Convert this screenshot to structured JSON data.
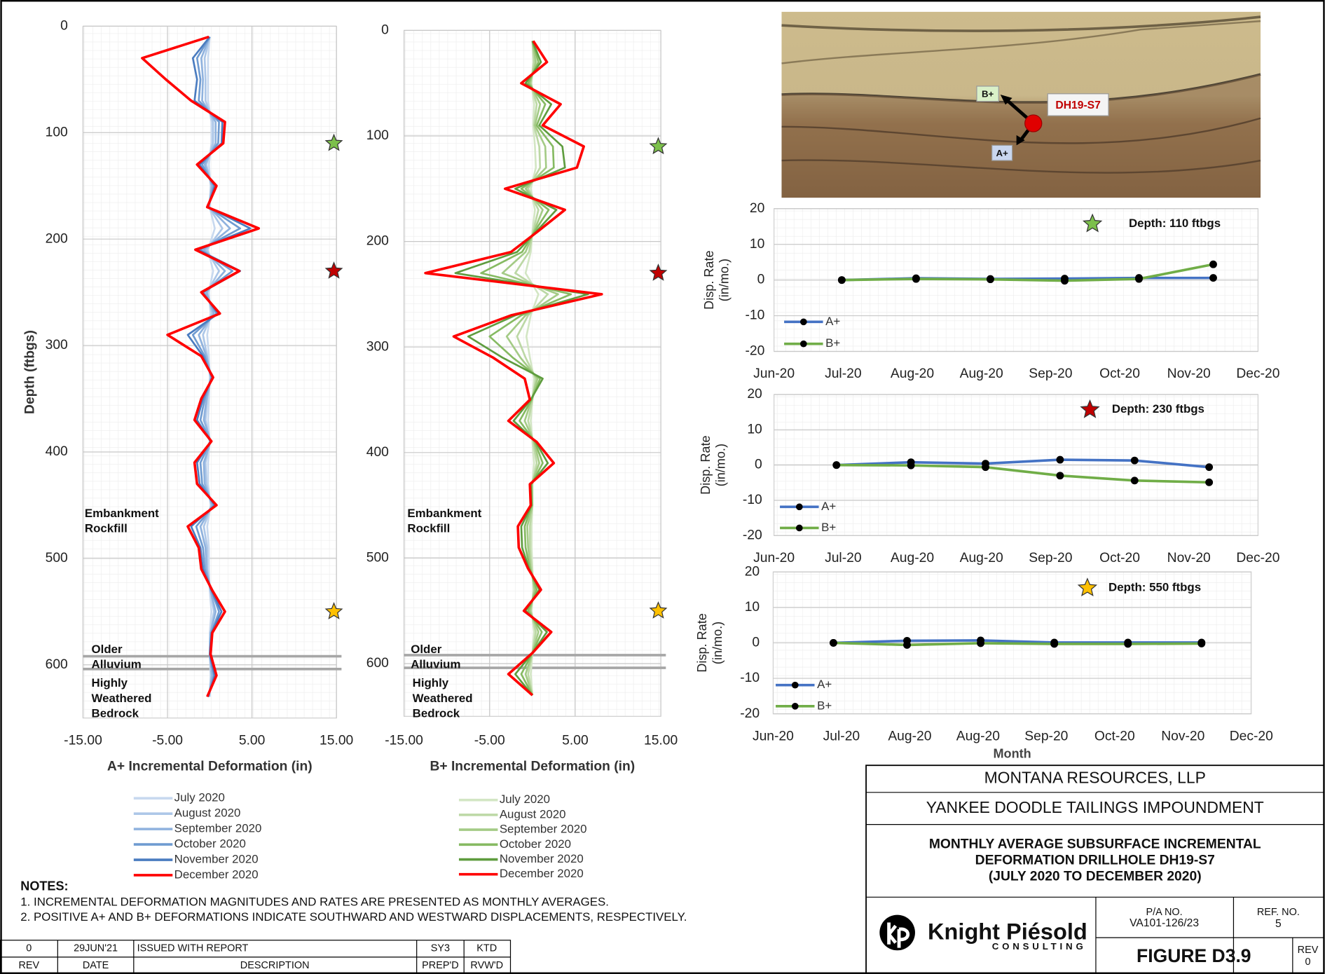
{
  "chart_data": [
    {
      "type": "profile",
      "x_label": "A+ Incremental Deformation (in)",
      "y_label": "Depth (ftbgs)",
      "depths": [
        10,
        30,
        50,
        70,
        90,
        110,
        130,
        150,
        170,
        190,
        210,
        230,
        250,
        270,
        290,
        310,
        330,
        350,
        370,
        390,
        410,
        430,
        450,
        470,
        490,
        510,
        530,
        550,
        570,
        590,
        610,
        630
      ],
      "series": [
        {
          "name": "July 2020",
          "color": "#c8d9ef",
          "values": [
            0,
            -0.2,
            -0.2,
            -0.2,
            0.2,
            0.2,
            -0.1,
            0.1,
            0,
            0.6,
            -0.2,
            0.4,
            -0.1,
            0.1,
            -0.3,
            -0.1,
            0,
            -0.1,
            -0.2,
            0,
            -0.2,
            -0.2,
            0.1,
            -0.3,
            -0.1,
            -0.1,
            0,
            0.2,
            0,
            0,
            0.1,
            0
          ]
        },
        {
          "name": "August  2020",
          "color": "#adc7e8",
          "values": [
            0,
            -0.6,
            -0.5,
            -0.5,
            0.4,
            0.4,
            -0.4,
            0.2,
            -0.1,
            1.5,
            -0.4,
            1.1,
            -0.3,
            0.3,
            -0.8,
            -0.3,
            0.1,
            -0.3,
            -0.5,
            0,
            -0.5,
            -0.4,
            0.2,
            -0.7,
            -0.3,
            -0.3,
            0.1,
            0.5,
            0.1,
            0,
            0.2,
            -0.1
          ]
        },
        {
          "name": "September 2020",
          "color": "#8fb2de",
          "values": [
            0,
            -1,
            -0.8,
            -0.9,
            0.7,
            0.7,
            -0.6,
            0.3,
            -0.1,
            2.4,
            -0.7,
            1.8,
            -0.4,
            0.5,
            -1.3,
            -0.4,
            0.2,
            -0.4,
            -0.7,
            0.1,
            -0.7,
            -0.6,
            0.3,
            -1.1,
            -0.5,
            -0.4,
            0.1,
            0.7,
            0.1,
            0,
            0.3,
            -0.1
          ]
        },
        {
          "name": "October 2020",
          "color": "#6f9bd1",
          "values": [
            0,
            -1.5,
            -1.1,
            -1.3,
            1.1,
            1,
            -0.9,
            0.5,
            -0.2,
            3.6,
            -1.1,
            2.7,
            -0.7,
            0.8,
            -2,
            -0.6,
            0.2,
            -0.6,
            -1.1,
            0.1,
            -1.1,
            -0.9,
            0.5,
            -1.6,
            -0.8,
            -0.6,
            0.2,
            1.1,
            0.2,
            0,
            0.5,
            -0.2
          ]
        },
        {
          "name": "November 2020",
          "color": "#4a7cc0",
          "values": [
            0,
            -2,
            -1.5,
            -1.8,
            1.5,
            1.4,
            -1.2,
            0.6,
            -0.2,
            4.8,
            -1.4,
            3.6,
            -0.9,
            1,
            -2.6,
            -0.8,
            0.3,
            -0.8,
            -1.5,
            0.1,
            -1.5,
            -1.2,
            0.6,
            -2.2,
            -1.1,
            -0.8,
            0.2,
            1.4,
            0.2,
            0,
            0.6,
            -0.2
          ]
        },
        {
          "name": "December 2020",
          "color": "#ff0000",
          "values": [
            -0.1,
            -8,
            -5.2,
            -2.2,
            1.8,
            1.6,
            -1.5,
            0.8,
            -0.3,
            5.8,
            -1.7,
            3.5,
            -1,
            1.2,
            -5,
            -1,
            0.4,
            -1,
            -1.8,
            0.2,
            -1.8,
            -1.5,
            0.8,
            -2.6,
            -1.3,
            -1,
            0.3,
            1.8,
            0.3,
            0.1,
            0.8,
            -0.3
          ]
        }
      ],
      "xlim": [
        -15,
        15
      ],
      "xticks": [
        {
          "value": -15,
          "label": "-15.00"
        },
        {
          "value": -5,
          "label": "-5.00"
        },
        {
          "value": 5,
          "label": "5.00"
        },
        {
          "value": 15,
          "label": "15.00"
        }
      ],
      "ylim": [
        0,
        650
      ],
      "yticks": [
        0,
        100,
        200,
        300,
        400,
        500,
        600
      ],
      "grid": true,
      "boundaries": [
        592,
        604
      ],
      "layer_labels": [
        [
          "Embankment",
          "Rockfill"
        ],
        [
          "Older",
          "Alluvium"
        ],
        [
          "Highly",
          "Weathered",
          "Bedrock"
        ]
      ],
      "markers": [
        {
          "depth": 110,
          "color": "#7cc04b"
        },
        {
          "depth": 230,
          "color": "#c00000"
        },
        {
          "depth": 550,
          "color": "#ffc000"
        }
      ]
    },
    {
      "type": "profile",
      "x_label": "B+ Incremental Deformation (in)",
      "depths": [
        10,
        30,
        50,
        70,
        90,
        110,
        130,
        150,
        170,
        190,
        210,
        230,
        250,
        270,
        290,
        310,
        330,
        350,
        370,
        390,
        410,
        430,
        450,
        470,
        490,
        510,
        530,
        550,
        570,
        590,
        610,
        630
      ],
      "series": [
        {
          "name": "July 2020",
          "color": "#d3e6c4",
          "values": [
            0,
            0.1,
            -0.1,
            0.2,
            0.1,
            0.3,
            0.4,
            -0.2,
            0.3,
            0,
            -0.2,
            -0.8,
            0.7,
            -0.2,
            -0.7,
            -0.3,
            0.2,
            0,
            -0.2,
            0,
            0.2,
            0,
            0,
            -0.1,
            -0.1,
            0,
            0.1,
            -0.1,
            0.2,
            0,
            -0.2,
            0
          ]
        },
        {
          "name": "August 2020",
          "color": "#bcd8a5",
          "values": [
            0,
            0.2,
            -0.2,
            0.5,
            0.2,
            0.8,
            0.9,
            -0.5,
            0.7,
            0.1,
            -0.4,
            -2,
            1.8,
            -0.5,
            -1.8,
            -0.8,
            0.4,
            0,
            -0.5,
            0.1,
            0.5,
            0,
            0,
            -0.3,
            -0.3,
            -0.1,
            0.2,
            -0.2,
            0.4,
            0,
            -0.5,
            0
          ]
        },
        {
          "name": "September 2020",
          "color": "#a4cb86",
          "values": [
            0,
            0.4,
            -0.3,
            0.9,
            0.3,
            1.5,
            1.6,
            -0.8,
            1.2,
            0.2,
            -0.8,
            -3.5,
            3,
            -0.8,
            -3,
            -1.4,
            0.6,
            -0.1,
            -0.9,
            0.2,
            0.8,
            -0.1,
            0,
            -0.6,
            -0.5,
            -0.2,
            0.3,
            -0.3,
            0.7,
            0,
            -0.8,
            0
          ]
        },
        {
          "name": "October 2020",
          "color": "#86ba62",
          "values": [
            0,
            0.7,
            -0.5,
            1.5,
            0.5,
            2.4,
            2.5,
            -1.3,
            1.9,
            0.3,
            -1.2,
            -6,
            4.5,
            -1.3,
            -5,
            -2.3,
            0.9,
            -0.1,
            -1.5,
            0.3,
            1.2,
            -0.1,
            -0.1,
            -0.9,
            -0.8,
            -0.3,
            0.5,
            -0.5,
            1.1,
            0,
            -1.3,
            0
          ]
        },
        {
          "name": "November 2020",
          "color": "#5e9c3e",
          "values": [
            0,
            1,
            -0.8,
            2.2,
            0.8,
            3.5,
            3.8,
            -2,
            2.8,
            0.5,
            -1.8,
            -9,
            6.5,
            -2,
            -7.5,
            -3.5,
            1.2,
            -0.2,
            -2.2,
            0.4,
            1.8,
            -0.2,
            -0.1,
            -1.3,
            -1.2,
            -0.4,
            0.8,
            -0.8,
            1.7,
            0,
            -2,
            0
          ]
        },
        {
          "name": "December 2020",
          "color": "#ff0000",
          "values": [
            0.1,
            1.7,
            -1.3,
            3.3,
            1.2,
            6,
            5.2,
            -3.2,
            3.8,
            0.7,
            -2.5,
            -12.5,
            8.1,
            -2.5,
            -9.2,
            -4.6,
            -0.9,
            -0.3,
            -2.8,
            0.5,
            2.5,
            -0.3,
            -0.2,
            -1.7,
            -1.6,
            -0.5,
            1,
            -1,
            2.2,
            0,
            -2.8,
            0
          ]
        }
      ],
      "xlim": [
        -15,
        15
      ],
      "xticks": [
        {
          "value": -15,
          "label": "-15.00"
        },
        {
          "value": -5,
          "label": "-5.00"
        },
        {
          "value": 5,
          "label": "5.00"
        },
        {
          "value": 15,
          "label": "15.00"
        }
      ],
      "ylim": [
        0,
        650
      ],
      "yticks": [
        0,
        100,
        200,
        300,
        400,
        500,
        600
      ],
      "grid": true,
      "boundaries": [
        592,
        604
      ],
      "layer_labels": [
        [
          "Embankment",
          "Rockfill"
        ],
        [
          "Older",
          "Alluvium"
        ],
        [
          "Highly",
          "Weathered",
          "Bedrock"
        ]
      ],
      "markers": [
        {
          "depth": 110,
          "color": "#7cc04b"
        },
        {
          "depth": 230,
          "color": "#c00000"
        },
        {
          "depth": 550,
          "color": "#ffc000"
        }
      ]
    },
    {
      "type": "line",
      "title": "Depth: 110 ftbgs",
      "marker_color": "#7cc04b",
      "y_label_lines": [
        "Disp. Rate",
        "(in/mo.)"
      ],
      "x_labels": [
        "Jun-20",
        "Jul-20",
        "Aug-20",
        "Aug-20",
        "Sep-20",
        "Oct-20",
        "Nov-20",
        "Dec-20"
      ],
      "ylim": [
        -20,
        20
      ],
      "yticks": [
        -20,
        -10,
        0,
        10,
        20
      ],
      "grid": true,
      "series": [
        {
          "name": "A+",
          "color": "#4472c4",
          "values": [
            0,
            0.5,
            0.3,
            0.4,
            0.6,
            0.6
          ]
        },
        {
          "name": "B+",
          "color": "#70ad47",
          "values": [
            0,
            0.3,
            0.2,
            -0.2,
            0.3,
            4.4
          ]
        }
      ]
    },
    {
      "type": "line",
      "title": "Depth: 230 ftbgs",
      "marker_color": "#c00000",
      "y_label_lines": [
        "Disp. Rate",
        "(in/mo.)"
      ],
      "x_labels": [
        "Jun-20",
        "Jul-20",
        "Aug-20",
        "Aug-20",
        "Sep-20",
        "Oct-20",
        "Nov-20",
        "Dec-20"
      ],
      "ylim": [
        -20,
        20
      ],
      "yticks": [
        -20,
        -10,
        0,
        10,
        20
      ],
      "grid": true,
      "series": [
        {
          "name": "A+",
          "color": "#4472c4",
          "values": [
            0,
            0.8,
            0.4,
            1.5,
            1.3,
            -0.6
          ]
        },
        {
          "name": "B+",
          "color": "#70ad47",
          "values": [
            0,
            -0.1,
            -0.6,
            -3,
            -4.4,
            -4.9
          ]
        }
      ]
    },
    {
      "type": "line",
      "title": "Depth: 550 ftbgs",
      "marker_color": "#ffc000",
      "y_label_lines": [
        "Disp. Rate",
        "(in/mo.)"
      ],
      "x_label": "Month",
      "x_labels": [
        "Jun-20",
        "Jul-20",
        "Aug-20",
        "Aug-20",
        "Sep-20",
        "Oct-20",
        "Nov-20",
        "Dec-20"
      ],
      "ylim": [
        -20,
        20
      ],
      "yticks": [
        -20,
        -10,
        0,
        10,
        20
      ],
      "grid": true,
      "series": [
        {
          "name": "A+",
          "color": "#4472c4",
          "values": [
            0,
            0.6,
            0.7,
            0.1,
            0.1,
            0.1
          ]
        },
        {
          "name": "B+",
          "color": "#70ad47",
          "values": [
            0,
            -0.6,
            -0.1,
            -0.3,
            -0.3,
            -0.2
          ]
        }
      ]
    }
  ],
  "photo": {
    "b_label": "B+",
    "a_label": "A+",
    "drillhole": "DH19-S7"
  },
  "notes": {
    "heading": "NOTES:",
    "items": [
      "1. INCREMENTAL DEFORMATION MAGNITUDES AND RATES ARE PRESENTED AS MONTHLY AVERAGES.",
      "2. POSITIVE A+ AND B+ DEFORMATIONS INDICATE SOUTHWARD AND WESTWARD DISPLACEMENTS, RESPECTIVELY."
    ]
  },
  "revision_table": {
    "rows": [
      [
        0,
        "29JUN'21",
        "ISSUED WITH REPORT",
        "SY3",
        "KTD"
      ],
      [
        "REV",
        "DATE",
        "DESCRIPTION",
        "PREP'D",
        "RVW'D"
      ]
    ]
  },
  "title_block": {
    "company": "MONTANA RESOURCES, LLP",
    "project": "YANKEE DOODLE TAILINGS IMPOUNDMENT",
    "title_lines": [
      "MONTHLY AVERAGE SUBSURFACE INCREMENTAL",
      "DEFORMATION DRILLHOLE DH19-S7",
      "(JULY 2020 TO DECEMBER 2020)"
    ],
    "logo": "Knight Piésold",
    "logo_sub": "CONSULTING",
    "pa_label": "P/A NO.",
    "pa_no": "VA101-126/23",
    "ref_label": "REF. NO.",
    "ref_no": 5,
    "figure": "FIGURE D3.9",
    "rev_label": "REV",
    "rev": 0
  }
}
